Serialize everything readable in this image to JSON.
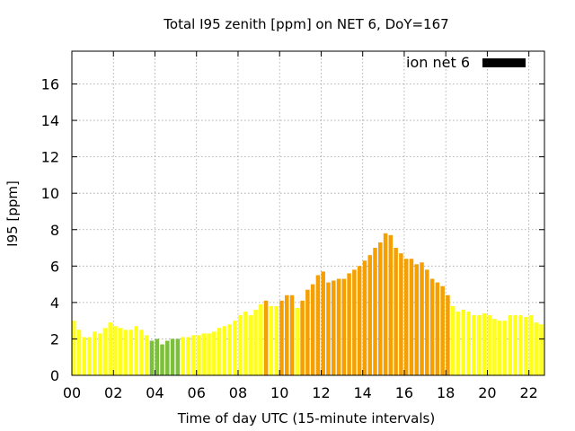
{
  "chart_data": {
    "type": "bar",
    "title": "Total I95 zenith [ppm] on NET 6, DoY=167",
    "xlabel": "Time of day UTC (15-minute intervals)",
    "ylabel": "I95 [ppm]",
    "xlim": [
      0,
      22.75
    ],
    "ylim": [
      0,
      17.8
    ],
    "interval_hours": 0.25,
    "x_ticks": [
      "00",
      "02",
      "04",
      "06",
      "08",
      "10",
      "12",
      "14",
      "16",
      "18",
      "20",
      "22"
    ],
    "y_ticks": [
      "0",
      "2",
      "4",
      "6",
      "8",
      "10",
      "12",
      "14",
      "16"
    ],
    "grid": true,
    "legend": {
      "label": "ion net 6",
      "position": "top-right",
      "color": "#000000"
    },
    "colors": {
      "low": "#ffff1a",
      "medium": "#f5a000",
      "very_low": "#7cbf3a"
    },
    "values": [
      3.0,
      2.5,
      2.1,
      2.1,
      2.4,
      2.3,
      2.6,
      2.9,
      2.7,
      2.6,
      2.5,
      2.5,
      2.7,
      2.5,
      2.2,
      1.9,
      2.0,
      1.7,
      1.9,
      2.0,
      2.0,
      2.1,
      2.1,
      2.2,
      2.2,
      2.3,
      2.3,
      2.4,
      2.6,
      2.7,
      2.8,
      3.0,
      3.3,
      3.5,
      3.3,
      3.6,
      3.9,
      4.1,
      3.8,
      3.8,
      4.1,
      4.4,
      4.4,
      3.7,
      4.1,
      4.7,
      5.0,
      5.5,
      5.7,
      5.1,
      5.2,
      5.3,
      5.3,
      5.6,
      5.8,
      6.0,
      6.3,
      6.6,
      7.0,
      7.3,
      7.8,
      7.7,
      7.0,
      6.7,
      6.4,
      6.4,
      6.1,
      6.2,
      5.8,
      5.3,
      5.1,
      4.9,
      4.4,
      3.8,
      3.5,
      3.6,
      3.5,
      3.3,
      3.3,
      3.4,
      3.3,
      3.1,
      3.0,
      3.0,
      3.3,
      3.3,
      3.3,
      3.2,
      3.3,
      2.9,
      2.8
    ],
    "levels": [
      "low",
      "low",
      "low",
      "low",
      "low",
      "low",
      "low",
      "low",
      "low",
      "low",
      "low",
      "low",
      "low",
      "low",
      "low",
      "very_low",
      "very_low",
      "very_low",
      "very_low",
      "very_low",
      "very_low",
      "low",
      "low",
      "low",
      "low",
      "low",
      "low",
      "low",
      "low",
      "low",
      "low",
      "low",
      "low",
      "low",
      "low",
      "low",
      "low",
      "medium",
      "low",
      "low",
      "medium",
      "medium",
      "medium",
      "low",
      "medium",
      "medium",
      "medium",
      "medium",
      "medium",
      "medium",
      "medium",
      "medium",
      "medium",
      "medium",
      "medium",
      "medium",
      "medium",
      "medium",
      "medium",
      "medium",
      "medium",
      "medium",
      "medium",
      "medium",
      "medium",
      "medium",
      "medium",
      "medium",
      "medium",
      "medium",
      "medium",
      "medium",
      "medium",
      "low",
      "low",
      "low",
      "low",
      "low",
      "low",
      "low",
      "low",
      "low",
      "low",
      "low",
      "low",
      "low",
      "low",
      "low",
      "low",
      "low",
      "low"
    ]
  }
}
